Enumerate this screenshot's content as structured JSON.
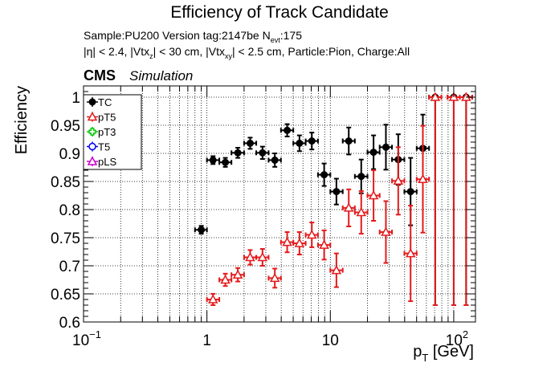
{
  "chart_data": {
    "type": "scatter",
    "title": "Efficiency of Track Candidate",
    "subtitle_lines": [
      "Sample:PU200   Version tag:2147be  N_evt:175",
      "|η| < 2.4, |Vtx_z| < 30 cm, |Vtx_xy| < 2.5 cm, Particle:Pion, Charge:All"
    ],
    "cms_label": "CMS",
    "simulation_label": "Simulation",
    "xlabel": "p_T [GeV]",
    "ylabel": "Efficiency",
    "x_scale": "log",
    "xlim": [
      0.1,
      150
    ],
    "ylim": [
      0.6,
      1.02
    ],
    "x_ticks": [
      {
        "value": 0.1,
        "base": "10",
        "exp": "−1"
      },
      {
        "value": 1,
        "base": "1",
        "exp": ""
      },
      {
        "value": 10,
        "base": "10",
        "exp": ""
      },
      {
        "value": 100,
        "base": "10",
        "exp": "2"
      }
    ],
    "y_ticks": [
      {
        "value": 0.6,
        "label": "0.6"
      },
      {
        "value": 0.65,
        "label": "0.65"
      },
      {
        "value": 0.7,
        "label": "0.7"
      },
      {
        "value": 0.75,
        "label": "0.75"
      },
      {
        "value": 0.8,
        "label": "0.8"
      },
      {
        "value": 0.85,
        "label": "0.85"
      },
      {
        "value": 0.9,
        "label": "0.9"
      },
      {
        "value": 0.95,
        "label": "0.95"
      },
      {
        "value": 1,
        "label": "1"
      }
    ],
    "grid": true,
    "legend_position": "top-left",
    "series": [
      {
        "name": "TC",
        "color": "#000000",
        "marker": "filled-circle",
        "points": [
          {
            "x": 0.9,
            "y": 0.764,
            "xlo": 0.8,
            "xhi": 1.0,
            "elo": 0.007,
            "ehi": 0.007
          },
          {
            "x": 1.12,
            "y": 0.888,
            "xlo": 1.0,
            "xhi": 1.26,
            "elo": 0.007,
            "ehi": 0.007
          },
          {
            "x": 1.41,
            "y": 0.884,
            "xlo": 1.26,
            "xhi": 1.58,
            "elo": 0.008,
            "ehi": 0.008
          },
          {
            "x": 1.78,
            "y": 0.901,
            "xlo": 1.58,
            "xhi": 2.0,
            "elo": 0.009,
            "ehi": 0.009
          },
          {
            "x": 2.24,
            "y": 0.918,
            "xlo": 2.0,
            "xhi": 2.51,
            "elo": 0.01,
            "ehi": 0.01
          },
          {
            "x": 2.82,
            "y": 0.901,
            "xlo": 2.51,
            "xhi": 3.16,
            "elo": 0.011,
            "ehi": 0.011
          },
          {
            "x": 3.55,
            "y": 0.888,
            "xlo": 3.16,
            "xhi": 3.98,
            "elo": 0.012,
            "ehi": 0.012
          },
          {
            "x": 4.47,
            "y": 0.941,
            "xlo": 3.98,
            "xhi": 5.01,
            "elo": 0.011,
            "ehi": 0.011
          },
          {
            "x": 5.62,
            "y": 0.918,
            "xlo": 5.01,
            "xhi": 6.31,
            "elo": 0.014,
            "ehi": 0.014
          },
          {
            "x": 7.08,
            "y": 0.922,
            "xlo": 6.31,
            "xhi": 7.94,
            "elo": 0.015,
            "ehi": 0.015
          },
          {
            "x": 8.91,
            "y": 0.862,
            "xlo": 7.94,
            "xhi": 10.0,
            "elo": 0.02,
            "ehi": 0.02
          },
          {
            "x": 11.2,
            "y": 0.832,
            "xlo": 10.0,
            "xhi": 12.6,
            "elo": 0.023,
            "ehi": 0.023
          },
          {
            "x": 14.1,
            "y": 0.922,
            "xlo": 12.6,
            "xhi": 15.8,
            "elo": 0.024,
            "ehi": 0.024
          },
          {
            "x": 17.8,
            "y": 0.859,
            "xlo": 15.8,
            "xhi": 20.0,
            "elo": 0.03,
            "ehi": 0.03
          },
          {
            "x": 22.4,
            "y": 0.902,
            "xlo": 20.0,
            "xhi": 25.1,
            "elo": 0.03,
            "ehi": 0.03
          },
          {
            "x": 28.2,
            "y": 0.911,
            "xlo": 25.1,
            "xhi": 31.6,
            "elo": 0.04,
            "ehi": 0.04
          },
          {
            "x": 35.5,
            "y": 0.889,
            "xlo": 31.6,
            "xhi": 39.8,
            "elo": 0.045,
            "ehi": 0.045
          },
          {
            "x": 44.7,
            "y": 0.832,
            "xlo": 39.8,
            "xhi": 50.1,
            "elo": 0.06,
            "ehi": 0.06
          },
          {
            "x": 56.2,
            "y": 0.909,
            "xlo": 50.1,
            "xhi": 63.1,
            "elo": 0.06,
            "ehi": 0.06
          },
          {
            "x": 70.8,
            "y": 1.0,
            "xlo": 63.1,
            "xhi": 79.4,
            "elo": 0.37,
            "ehi": 0.0
          },
          {
            "x": 100,
            "y": 1.0,
            "xlo": 89.1,
            "xhi": 112,
            "elo": 0.37,
            "ehi": 0.0
          },
          {
            "x": 126,
            "y": 1.0,
            "xlo": 112,
            "xhi": 141,
            "elo": 0.37,
            "ehi": 0.0
          }
        ]
      },
      {
        "name": "pT5",
        "color": "#e41a1c",
        "marker": "open-triangle",
        "points": [
          {
            "x": 1.12,
            "y": 0.64,
            "xlo": 1.0,
            "xhi": 1.26,
            "elo": 0.01,
            "ehi": 0.01
          },
          {
            "x": 1.41,
            "y": 0.675,
            "xlo": 1.26,
            "xhi": 1.58,
            "elo": 0.011,
            "ehi": 0.011
          },
          {
            "x": 1.78,
            "y": 0.684,
            "xlo": 1.58,
            "xhi": 2.0,
            "elo": 0.012,
            "ehi": 0.012
          },
          {
            "x": 2.24,
            "y": 0.715,
            "xlo": 2.0,
            "xhi": 2.51,
            "elo": 0.013,
            "ehi": 0.013
          },
          {
            "x": 2.82,
            "y": 0.715,
            "xlo": 2.51,
            "xhi": 3.16,
            "elo": 0.015,
            "ehi": 0.015
          },
          {
            "x": 3.55,
            "y": 0.678,
            "xlo": 3.16,
            "xhi": 3.98,
            "elo": 0.017,
            "ehi": 0.017
          },
          {
            "x": 4.47,
            "y": 0.742,
            "xlo": 3.98,
            "xhi": 5.01,
            "elo": 0.018,
            "ehi": 0.018
          },
          {
            "x": 5.62,
            "y": 0.74,
            "xlo": 5.01,
            "xhi": 6.31,
            "elo": 0.02,
            "ehi": 0.02
          },
          {
            "x": 7.08,
            "y": 0.755,
            "xlo": 6.31,
            "xhi": 7.94,
            "elo": 0.022,
            "ehi": 0.022
          },
          {
            "x": 8.91,
            "y": 0.737,
            "xlo": 7.94,
            "xhi": 10.0,
            "elo": 0.026,
            "ehi": 0.026
          },
          {
            "x": 11.2,
            "y": 0.692,
            "xlo": 10.0,
            "xhi": 12.6,
            "elo": 0.03,
            "ehi": 0.03
          },
          {
            "x": 14.1,
            "y": 0.803,
            "xlo": 12.6,
            "xhi": 15.8,
            "elo": 0.033,
            "ehi": 0.033
          },
          {
            "x": 17.8,
            "y": 0.795,
            "xlo": 15.8,
            "xhi": 20.0,
            "elo": 0.038,
            "ehi": 0.038
          },
          {
            "x": 22.4,
            "y": 0.825,
            "xlo": 20.0,
            "xhi": 25.1,
            "elo": 0.045,
            "ehi": 0.045
          },
          {
            "x": 28.2,
            "y": 0.76,
            "xlo": 25.1,
            "xhi": 31.6,
            "elo": 0.055,
            "ehi": 0.055
          },
          {
            "x": 35.5,
            "y": 0.851,
            "xlo": 31.6,
            "xhi": 39.8,
            "elo": 0.06,
            "ehi": 0.06
          },
          {
            "x": 44.7,
            "y": 0.722,
            "xlo": 39.8,
            "xhi": 50.1,
            "elo": 0.085,
            "ehi": 0.085
          },
          {
            "x": 56.2,
            "y": 0.854,
            "xlo": 50.1,
            "xhi": 63.1,
            "elo": 0.095,
            "ehi": 0.095
          },
          {
            "x": 70.8,
            "y": 1.0,
            "xlo": 63.1,
            "xhi": 79.4,
            "elo": 0.37,
            "ehi": 0.0
          },
          {
            "x": 100,
            "y": 1.0,
            "xlo": 89.1,
            "xhi": 112,
            "elo": 0.37,
            "ehi": 0.0
          },
          {
            "x": 126,
            "y": 1.0,
            "xlo": 112,
            "xhi": 141,
            "elo": 0.37,
            "ehi": 0.0
          }
        ]
      },
      {
        "name": "pT3",
        "color": "#00cc00",
        "marker": "open-cross",
        "points": []
      },
      {
        "name": "T5",
        "color": "#0000ff",
        "marker": "open-circle",
        "points": []
      },
      {
        "name": "pLS",
        "color": "#cc00cc",
        "marker": "open-triangle",
        "points": []
      }
    ]
  }
}
